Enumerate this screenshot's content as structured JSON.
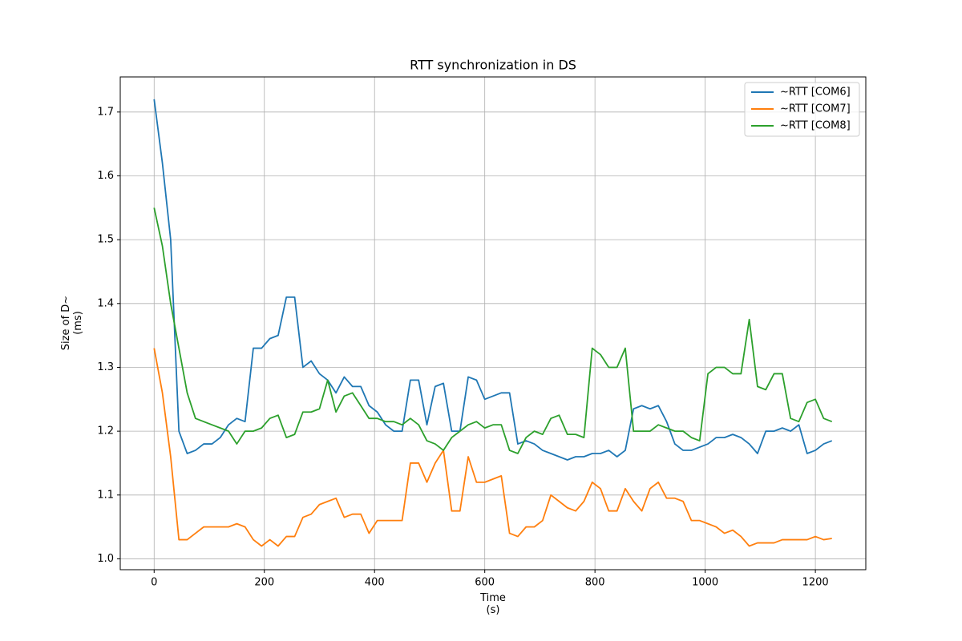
{
  "chart_data": {
    "type": "line",
    "title": "RTT synchronization in DS",
    "x_label": "Time\n(s)",
    "y_label": "Size of D~\n(ms)",
    "x": [
      0,
      15,
      30,
      45,
      60,
      75,
      90,
      105,
      120,
      135,
      150,
      165,
      180,
      195,
      210,
      225,
      240,
      255,
      270,
      285,
      300,
      315,
      330,
      345,
      360,
      375,
      390,
      405,
      420,
      435,
      450,
      465,
      480,
      495,
      510,
      525,
      540,
      555,
      570,
      585,
      600,
      615,
      630,
      645,
      660,
      675,
      690,
      705,
      720,
      735,
      750,
      765,
      780,
      795,
      810,
      825,
      840,
      855,
      870,
      885,
      900,
      915,
      930,
      945,
      960,
      975,
      990,
      1005,
      1020,
      1035,
      1050,
      1065,
      1080,
      1095,
      1110,
      1125,
      1140,
      1155,
      1170,
      1185,
      1200,
      1215,
      1230
    ],
    "series": [
      {
        "name": "~RTT [COM6]",
        "color": "#1f77b4",
        "values": [
          1.72,
          1.62,
          1.5,
          1.2,
          1.165,
          1.17,
          1.18,
          1.18,
          1.19,
          1.21,
          1.22,
          1.215,
          1.33,
          1.33,
          1.345,
          1.35,
          1.41,
          1.41,
          1.3,
          1.31,
          1.29,
          1.28,
          1.26,
          1.285,
          1.27,
          1.27,
          1.24,
          1.23,
          1.21,
          1.2,
          1.2,
          1.28,
          1.28,
          1.21,
          1.27,
          1.275,
          1.2,
          1.2,
          1.285,
          1.28,
          1.25,
          1.255,
          1.26,
          1.26,
          1.18,
          1.185,
          1.18,
          1.17,
          1.165,
          1.16,
          1.155,
          1.16,
          1.16,
          1.165,
          1.165,
          1.17,
          1.16,
          1.17,
          1.235,
          1.24,
          1.235,
          1.24,
          1.215,
          1.18,
          1.17,
          1.17,
          1.175,
          1.18,
          1.19,
          1.19,
          1.195,
          1.19,
          1.18,
          1.165,
          1.2,
          1.2,
          1.205,
          1.2,
          1.21,
          1.165,
          1.17,
          1.18,
          1.185
        ]
      },
      {
        "name": "~RTT [COM7]",
        "color": "#ff7f0e",
        "values": [
          1.33,
          1.26,
          1.16,
          1.03,
          1.03,
          1.04,
          1.05,
          1.05,
          1.05,
          1.05,
          1.055,
          1.05,
          1.03,
          1.02,
          1.03,
          1.02,
          1.035,
          1.035,
          1.065,
          1.07,
          1.085,
          1.09,
          1.095,
          1.065,
          1.07,
          1.07,
          1.04,
          1.06,
          1.06,
          1.06,
          1.06,
          1.15,
          1.15,
          1.12,
          1.15,
          1.17,
          1.075,
          1.075,
          1.16,
          1.12,
          1.12,
          1.125,
          1.13,
          1.04,
          1.035,
          1.05,
          1.05,
          1.06,
          1.1,
          1.09,
          1.08,
          1.075,
          1.09,
          1.12,
          1.11,
          1.075,
          1.075,
          1.11,
          1.09,
          1.075,
          1.11,
          1.12,
          1.095,
          1.095,
          1.09,
          1.06,
          1.06,
          1.055,
          1.05,
          1.04,
          1.045,
          1.035,
          1.02,
          1.025,
          1.025,
          1.025,
          1.03,
          1.03,
          1.03,
          1.03,
          1.035,
          1.03,
          1.032
        ]
      },
      {
        "name": "~RTT [COM8]",
        "color": "#2ca02c",
        "values": [
          1.55,
          1.49,
          1.4,
          1.33,
          1.26,
          1.22,
          1.215,
          1.21,
          1.205,
          1.2,
          1.18,
          1.2,
          1.2,
          1.205,
          1.22,
          1.225,
          1.19,
          1.195,
          1.23,
          1.23,
          1.235,
          1.28,
          1.23,
          1.255,
          1.26,
          1.24,
          1.22,
          1.22,
          1.215,
          1.215,
          1.21,
          1.22,
          1.21,
          1.185,
          1.18,
          1.17,
          1.19,
          1.2,
          1.21,
          1.215,
          1.205,
          1.21,
          1.21,
          1.17,
          1.165,
          1.19,
          1.2,
          1.195,
          1.22,
          1.225,
          1.195,
          1.195,
          1.19,
          1.33,
          1.32,
          1.3,
          1.3,
          1.33,
          1.2,
          1.2,
          1.2,
          1.21,
          1.205,
          1.2,
          1.2,
          1.19,
          1.185,
          1.29,
          1.3,
          1.3,
          1.29,
          1.29,
          1.375,
          1.27,
          1.265,
          1.29,
          1.29,
          1.22,
          1.215,
          1.245,
          1.25,
          1.22,
          1.215
        ]
      }
    ],
    "xlim": [
      -61.5,
      1291.5
    ],
    "ylim": [
      0.983,
      1.755
    ],
    "xticks": [
      0,
      200,
      400,
      600,
      800,
      1000,
      1200
    ],
    "yticks": [
      {
        "value": 1,
        "label": "1.0"
      },
      1.1,
      1.2,
      1.3,
      1.4,
      1.5,
      1.6,
      1.7
    ],
    "grid": true,
    "legend": "upper right"
  }
}
